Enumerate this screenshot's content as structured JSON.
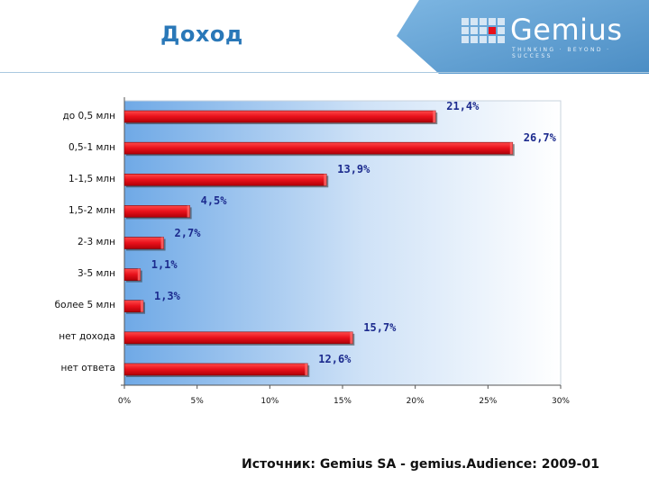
{
  "header": {
    "title": "Доход",
    "logo_text": "Gemius",
    "logo_tagline": "THINKING · BEYOND · SUCCESS"
  },
  "footer": {
    "source": "Источник: Gemius SA - gemius.Audience: 2009-01"
  },
  "chart_data": {
    "type": "bar",
    "orientation": "horizontal",
    "categories": [
      "до 0,5 млн",
      "0,5-1 млн",
      "1-1,5 млн",
      "1,5-2 млн",
      "2-3 млн",
      "3-5 млн",
      "более 5 млн",
      "нет дохода",
      "нет ответа"
    ],
    "values": [
      21.4,
      26.7,
      13.9,
      4.5,
      2.7,
      1.1,
      1.3,
      15.7,
      12.6
    ],
    "value_labels": [
      "21,4%",
      "26,7%",
      "13,9%",
      "4,5%",
      "2,7%",
      "1,1%",
      "1,3%",
      "15,7%",
      "12,6%"
    ],
    "xlim": [
      0,
      30
    ],
    "xticks": [
      "0%",
      "5%",
      "10%",
      "15%",
      "20%",
      "25%",
      "30%"
    ],
    "bar_color": "#e8101a",
    "label_color": "#1c2b8e",
    "grid": false,
    "legend": "none"
  },
  "colors": {
    "title": "#2a78b8",
    "brand_panel": "#5e9fd0",
    "plot_gradient_left": "#7fb4ea",
    "plot_gradient_right": "#ffffff"
  }
}
